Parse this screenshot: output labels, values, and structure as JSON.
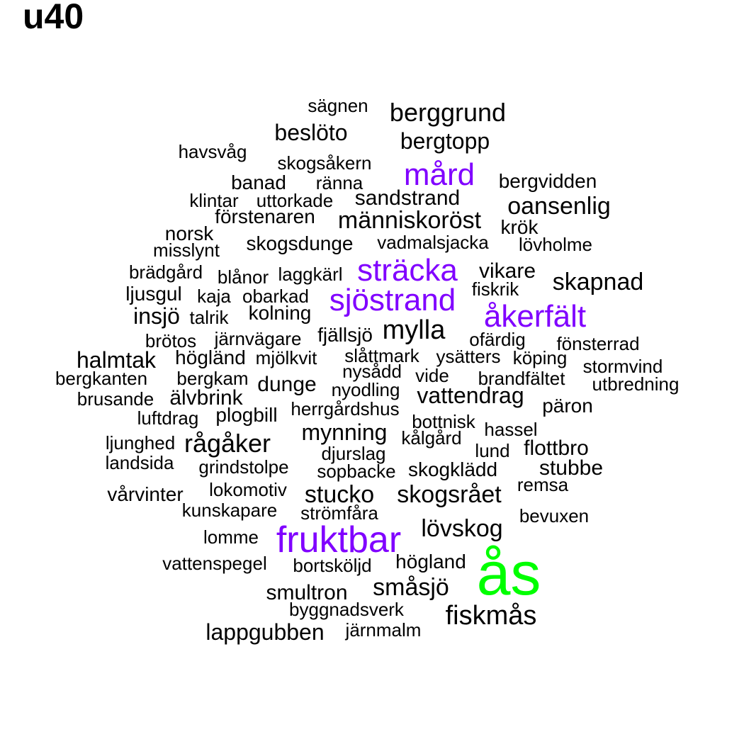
{
  "title": "u40",
  "colors": {
    "large": "#00ff00",
    "medium": "#8000ff",
    "small": "#000000"
  },
  "words": [
    {
      "text": "sägnen",
      "tier": "small"
    },
    {
      "text": "berggrund",
      "tier": "small"
    },
    {
      "text": "beslöto",
      "tier": "small"
    },
    {
      "text": "bergtopp",
      "tier": "small"
    },
    {
      "text": "havsvåg",
      "tier": "small"
    },
    {
      "text": "skogsåkern",
      "tier": "small"
    },
    {
      "text": "mård",
      "tier": "medium"
    },
    {
      "text": "banad",
      "tier": "small"
    },
    {
      "text": "ränna",
      "tier": "small"
    },
    {
      "text": "bergvidden",
      "tier": "small"
    },
    {
      "text": "sandstrand",
      "tier": "small"
    },
    {
      "text": "klintar",
      "tier": "small"
    },
    {
      "text": "uttorkade",
      "tier": "small"
    },
    {
      "text": "oansenlig",
      "tier": "small"
    },
    {
      "text": "förstenaren",
      "tier": "small"
    },
    {
      "text": "människoröst",
      "tier": "small"
    },
    {
      "text": "krök",
      "tier": "small"
    },
    {
      "text": "norsk",
      "tier": "small"
    },
    {
      "text": "skogsdunge",
      "tier": "small"
    },
    {
      "text": "vadmalsjacka",
      "tier": "small"
    },
    {
      "text": "lövholme",
      "tier": "small"
    },
    {
      "text": "misslynt",
      "tier": "small"
    },
    {
      "text": "brädgård",
      "tier": "small"
    },
    {
      "text": "blånor",
      "tier": "small"
    },
    {
      "text": "laggkärl",
      "tier": "small"
    },
    {
      "text": "sträcka",
      "tier": "medium"
    },
    {
      "text": "vikare",
      "tier": "small"
    },
    {
      "text": "skapnad",
      "tier": "small"
    },
    {
      "text": "fiskrik",
      "tier": "small"
    },
    {
      "text": "ljusgul",
      "tier": "small"
    },
    {
      "text": "kaja",
      "tier": "small"
    },
    {
      "text": "obarkad",
      "tier": "small"
    },
    {
      "text": "sjöstrand",
      "tier": "medium"
    },
    {
      "text": "åkerfält",
      "tier": "medium"
    },
    {
      "text": "insjö",
      "tier": "small"
    },
    {
      "text": "talrik",
      "tier": "small"
    },
    {
      "text": "kolning",
      "tier": "small"
    },
    {
      "text": "mylla",
      "tier": "small"
    },
    {
      "text": "brötos",
      "tier": "small"
    },
    {
      "text": "järnvägare",
      "tier": "small"
    },
    {
      "text": "fjällsjö",
      "tier": "small"
    },
    {
      "text": "ofärdig",
      "tier": "small"
    },
    {
      "text": "fönsterrad",
      "tier": "small"
    },
    {
      "text": "halmtak",
      "tier": "small"
    },
    {
      "text": "högländ",
      "tier": "small"
    },
    {
      "text": "mjölkvit",
      "tier": "small"
    },
    {
      "text": "slåttmark",
      "tier": "small"
    },
    {
      "text": "ysätters",
      "tier": "small"
    },
    {
      "text": "köping",
      "tier": "small"
    },
    {
      "text": "stormvind",
      "tier": "small"
    },
    {
      "text": "bergkanten",
      "tier": "small"
    },
    {
      "text": "bergkam",
      "tier": "small"
    },
    {
      "text": "nysådd",
      "tier": "small"
    },
    {
      "text": "vide",
      "tier": "small"
    },
    {
      "text": "brandfältet",
      "tier": "small"
    },
    {
      "text": "utbredning",
      "tier": "small"
    },
    {
      "text": "dunge",
      "tier": "small"
    },
    {
      "text": "nyodling",
      "tier": "small"
    },
    {
      "text": "brusande",
      "tier": "small"
    },
    {
      "text": "älvbrink",
      "tier": "small"
    },
    {
      "text": "vattendrag",
      "tier": "small"
    },
    {
      "text": "päron",
      "tier": "small"
    },
    {
      "text": "herrgårdshus",
      "tier": "small"
    },
    {
      "text": "luftdrag",
      "tier": "small"
    },
    {
      "text": "plogbill",
      "tier": "small"
    },
    {
      "text": "bottnisk",
      "tier": "small"
    },
    {
      "text": "hassel",
      "tier": "small"
    },
    {
      "text": "mynning",
      "tier": "small"
    },
    {
      "text": "kålgård",
      "tier": "small"
    },
    {
      "text": "ljunghed",
      "tier": "small"
    },
    {
      "text": "rågåker",
      "tier": "small"
    },
    {
      "text": "lund",
      "tier": "small"
    },
    {
      "text": "flottbro",
      "tier": "small"
    },
    {
      "text": "djurslag",
      "tier": "small"
    },
    {
      "text": "landsida",
      "tier": "small"
    },
    {
      "text": "grindstolpe",
      "tier": "small"
    },
    {
      "text": "sopbacke",
      "tier": "small"
    },
    {
      "text": "skogklädd",
      "tier": "small"
    },
    {
      "text": "stubbe",
      "tier": "small"
    },
    {
      "text": "remsa",
      "tier": "small"
    },
    {
      "text": "lokomotiv",
      "tier": "small"
    },
    {
      "text": "vårvinter",
      "tier": "small"
    },
    {
      "text": "stucko",
      "tier": "small"
    },
    {
      "text": "skogsrået",
      "tier": "small"
    },
    {
      "text": "kunskapare",
      "tier": "small"
    },
    {
      "text": "strömfåra",
      "tier": "small"
    },
    {
      "text": "bevuxen",
      "tier": "small"
    },
    {
      "text": "lövskog",
      "tier": "small"
    },
    {
      "text": "lomme",
      "tier": "small"
    },
    {
      "text": "fruktbar",
      "tier": "medium"
    },
    {
      "text": "ås",
      "tier": "large"
    },
    {
      "text": "vattenspegel",
      "tier": "small"
    },
    {
      "text": "bortsköljd",
      "tier": "small"
    },
    {
      "text": "högland",
      "tier": "small"
    },
    {
      "text": "småsjö",
      "tier": "small"
    },
    {
      "text": "smultron",
      "tier": "small"
    },
    {
      "text": "byggnadsverk",
      "tier": "small"
    },
    {
      "text": "fiskmås",
      "tier": "small"
    },
    {
      "text": "lappgubben",
      "tier": "small"
    },
    {
      "text": "järnmalm",
      "tier": "small"
    }
  ]
}
